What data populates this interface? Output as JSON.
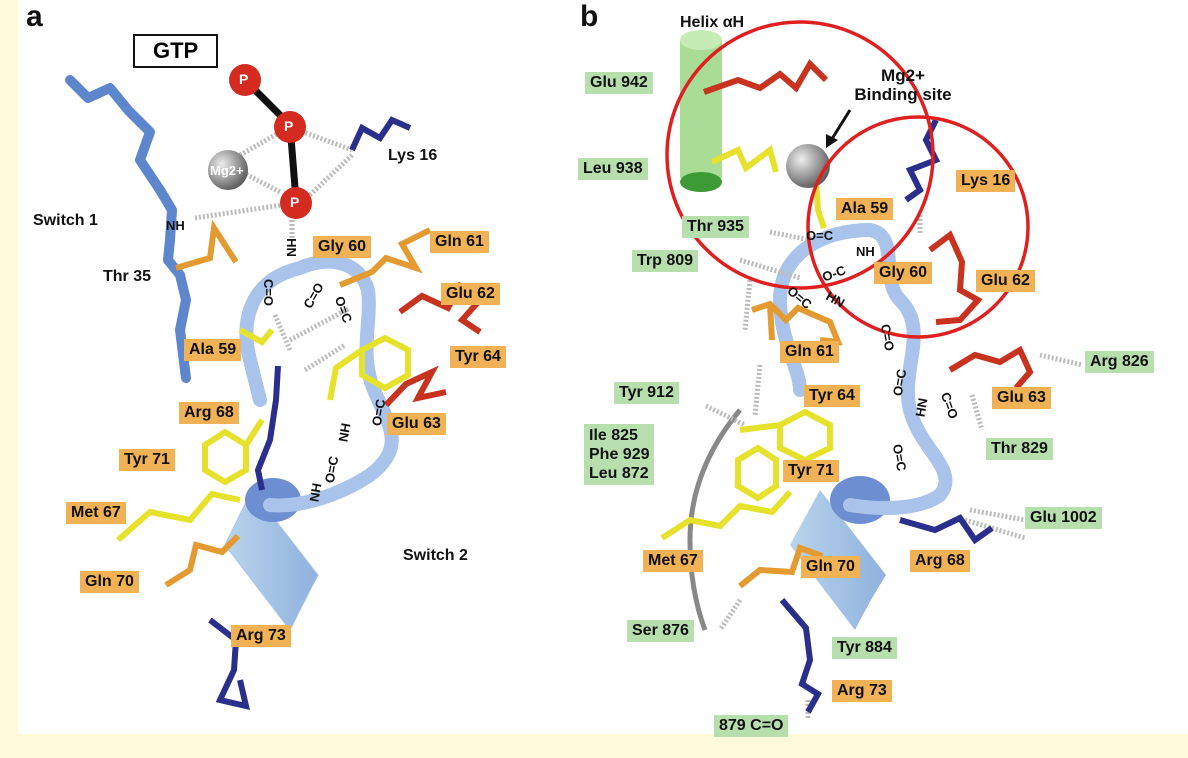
{
  "panel_a": {
    "letter": "a",
    "gtp": "GTP",
    "phosphate": "P",
    "mg_ion": "Mg2+",
    "labels": {
      "lys16": "Lys 16",
      "switch1": "Switch 1",
      "nh_thr": "NH",
      "thr35": "Thr 35",
      "gly60": "Gly 60",
      "gln61": "Gln 61",
      "glu62": "Glu 62",
      "ala59": "Ala 59",
      "tyr64": "Tyr 64",
      "arg68": "Arg 68",
      "glu63": "Glu 63",
      "tyr71": "Tyr 71",
      "met67": "Met 67",
      "switch2": "Switch 2",
      "gln70": "Gln 70",
      "arg73": "Arg 73"
    },
    "bonds": [
      "HN",
      "C=O",
      "C=O",
      "O=C",
      "O=C",
      "NH",
      "NH",
      "O=C"
    ]
  },
  "panel_b": {
    "letter": "b",
    "helix": "Helix αH",
    "mg_line1": "Mg2+",
    "mg_line2": "Binding site",
    "labels": {
      "glu942": "Glu 942",
      "leu938": "Leu 938",
      "lys16": "Lys 16",
      "ala59": "Ala 59",
      "thr935": "Thr 935",
      "trp809": "Trp 809",
      "gly60": "Gly 60",
      "glu62": "Glu 62",
      "gln61": "Gln 61",
      "arg826": "Arg 826",
      "tyr912": "Tyr 912",
      "tyr64": "Tyr 64",
      "glu63": "Glu 63",
      "ile_phe_leu": "Ile 825\nPhe 929\nLeu 872",
      "thr829": "Thr 829",
      "tyr71": "Tyr 71",
      "glu1002": "Glu 1002",
      "met67": "Met 67",
      "gln70": "Gln 70",
      "arg68": "Arg 68",
      "ser876": "Ser 876",
      "tyr884": "Tyr 884",
      "arg73": "Arg 73",
      "c879": "879 C=O"
    },
    "bonds": [
      "O=C",
      "NH",
      "O-C",
      "HN",
      "O=C",
      "C=O",
      "O=C",
      "HN",
      "O=C",
      "C=O"
    ]
  },
  "colors": {
    "background": "#fffbd9",
    "orange_label": "#f1b255",
    "green_label": "#b7dfae",
    "red_circle": "#e02020",
    "backbone": "#a9c3ea",
    "navy": "#2a2f8c",
    "yellow": "#e6e22c",
    "orange": "#e39a30",
    "red": "#c8331f",
    "phosphate": "#d42a20"
  }
}
